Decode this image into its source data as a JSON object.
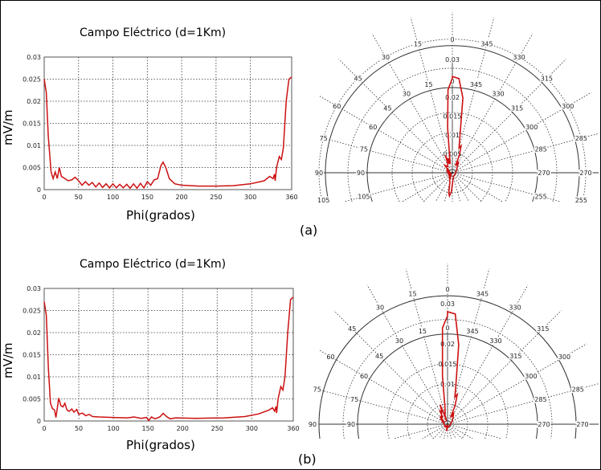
{
  "colors": {
    "series": "#cc1111",
    "grid": "#333333",
    "axis": "#555555"
  },
  "chart_data": [
    {
      "id": "a",
      "type": "line",
      "title": "Campo Eléctrico (d=1Km)",
      "xlabel": "Phi(grados)",
      "ylabel": "mV/m",
      "xlim": [
        0,
        360
      ],
      "ylim": [
        0,
        0.03
      ],
      "grid": true,
      "xticks": [
        "0",
        "50",
        "100",
        "150",
        "200",
        "250",
        "300",
        "360"
      ],
      "yticks": [
        "0",
        "0.005",
        "0.01",
        "0.015",
        "0.02",
        "0.025",
        "0.03"
      ],
      "panel_label": "(a)",
      "points": [
        [
          0,
          0.025
        ],
        [
          3,
          0.022
        ],
        [
          6,
          0.012
        ],
        [
          10,
          0.004
        ],
        [
          13,
          0.0025
        ],
        [
          16,
          0.004
        ],
        [
          19,
          0.0025
        ],
        [
          22,
          0.005
        ],
        [
          25,
          0.003
        ],
        [
          30,
          0.0025
        ],
        [
          35,
          0.002
        ],
        [
          40,
          0.0022
        ],
        [
          45,
          0.0028
        ],
        [
          50,
          0.002
        ],
        [
          55,
          0.001
        ],
        [
          60,
          0.0018
        ],
        [
          65,
          0.001
        ],
        [
          70,
          0.0016
        ],
        [
          75,
          0.0006
        ],
        [
          80,
          0.0015
        ],
        [
          85,
          0.0005
        ],
        [
          90,
          0.0013
        ],
        [
          95,
          0.0004
        ],
        [
          100,
          0.0013
        ],
        [
          105,
          0.0004
        ],
        [
          110,
          0.0012
        ],
        [
          115,
          0.0004
        ],
        [
          120,
          0.0012
        ],
        [
          125,
          0.0003
        ],
        [
          130,
          0.0013
        ],
        [
          135,
          0.0003
        ],
        [
          140,
          0.0014
        ],
        [
          145,
          0.0004
        ],
        [
          150,
          0.0018
        ],
        [
          155,
          0.001
        ],
        [
          160,
          0.0022
        ],
        [
          165,
          0.0025
        ],
        [
          170,
          0.0055
        ],
        [
          173,
          0.0062
        ],
        [
          177,
          0.005
        ],
        [
          182,
          0.0025
        ],
        [
          190,
          0.0013
        ],
        [
          200,
          0.001
        ],
        [
          225,
          0.0008
        ],
        [
          250,
          0.0008
        ],
        [
          275,
          0.0009
        ],
        [
          300,
          0.0013
        ],
        [
          320,
          0.002
        ],
        [
          328,
          0.003
        ],
        [
          333,
          0.0025
        ],
        [
          335,
          0.0035
        ],
        [
          336,
          0.002
        ],
        [
          338,
          0.005
        ],
        [
          342,
          0.0075
        ],
        [
          345,
          0.0068
        ],
        [
          348,
          0.0095
        ],
        [
          352,
          0.02
        ],
        [
          356,
          0.025
        ],
        [
          360,
          0.0255
        ]
      ],
      "polar": {
        "type": "polar",
        "angle_labels": [
          "0",
          "15",
          "30",
          "45",
          "60",
          "75",
          "90",
          "105",
          "255",
          "270",
          "285",
          "300",
          "315",
          "330",
          "345"
        ],
        "radial_labels": [
          "0.005",
          "0.01",
          "0.015",
          "0.02",
          "0.03"
        ]
      }
    },
    {
      "id": "b",
      "type": "line",
      "title": "Campo Eléctrico (d=1Km)",
      "xlabel": "Phi(grados)",
      "ylabel": "mV/m",
      "xlim": [
        0,
        360
      ],
      "ylim": [
        0,
        0.03
      ],
      "grid": true,
      "xticks": [
        "0",
        "50",
        "100",
        "150",
        "200",
        "250",
        "300",
        "360"
      ],
      "yticks": [
        "0",
        "0.005",
        "0.01",
        "0.015",
        "0.02",
        "0.025",
        "0.03"
      ],
      "panel_label": "(b)",
      "points": [
        [
          0,
          0.027
        ],
        [
          3,
          0.024
        ],
        [
          6,
          0.012
        ],
        [
          9,
          0.004
        ],
        [
          12,
          0.0028
        ],
        [
          15,
          0.0025
        ],
        [
          17,
          0.0008
        ],
        [
          19,
          0.003
        ],
        [
          21,
          0.0052
        ],
        [
          24,
          0.0035
        ],
        [
          27,
          0.0032
        ],
        [
          30,
          0.004
        ],
        [
          33,
          0.0025
        ],
        [
          36,
          0.0022
        ],
        [
          40,
          0.0027
        ],
        [
          43,
          0.002
        ],
        [
          47,
          0.0026
        ],
        [
          50,
          0.0015
        ],
        [
          55,
          0.0018
        ],
        [
          60,
          0.0012
        ],
        [
          65,
          0.0015
        ],
        [
          70,
          0.001
        ],
        [
          80,
          0.0009
        ],
        [
          100,
          0.0008
        ],
        [
          120,
          0.0007
        ],
        [
          130,
          0.0009
        ],
        [
          140,
          0.0006
        ],
        [
          148,
          0.0008
        ],
        [
          151,
          0.0001
        ],
        [
          155,
          0.0009
        ],
        [
          160,
          0.0005
        ],
        [
          167,
          0.0009
        ],
        [
          172,
          0.0017
        ],
        [
          177,
          0.001
        ],
        [
          182,
          0.0005
        ],
        [
          190,
          0.0007
        ],
        [
          220,
          0.0006
        ],
        [
          260,
          0.0007
        ],
        [
          290,
          0.001
        ],
        [
          310,
          0.0016
        ],
        [
          325,
          0.0025
        ],
        [
          330,
          0.003
        ],
        [
          333,
          0.0022
        ],
        [
          335,
          0.0033
        ],
        [
          336,
          0.0018
        ],
        [
          338,
          0.005
        ],
        [
          342,
          0.0078
        ],
        [
          345,
          0.007
        ],
        [
          348,
          0.01
        ],
        [
          352,
          0.02
        ],
        [
          356,
          0.0275
        ],
        [
          360,
          0.028
        ]
      ],
      "polar": {
        "type": "polar",
        "angle_labels": [
          "0",
          "15",
          "30",
          "45",
          "60",
          "75",
          "90",
          "270",
          "285",
          "300",
          "315",
          "330",
          "345"
        ],
        "radial_labels": [
          "0.01",
          "0.015",
          "0.02",
          "0.03"
        ]
      }
    }
  ]
}
